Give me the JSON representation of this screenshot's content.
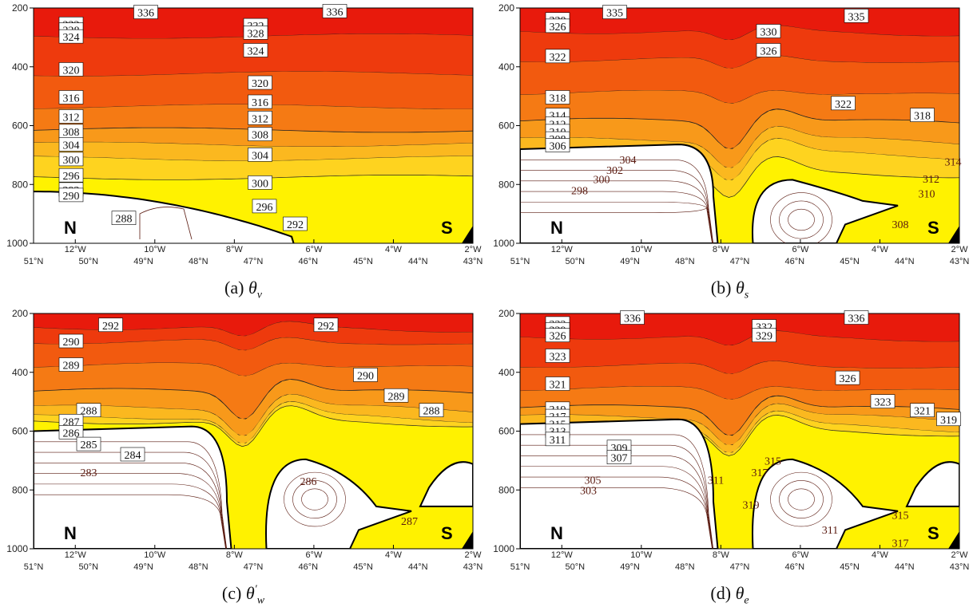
{
  "chart_data": [
    {
      "id": "a",
      "type": "contour",
      "caption_prefix": "(a)",
      "caption_symbol": "θ",
      "caption_sub": "v",
      "caption_sup": "",
      "y_ticks": [
        200,
        400,
        600,
        800,
        1000
      ],
      "ylim": [
        200,
        1000
      ],
      "lon_ticks": [
        "12°W",
        "10°W",
        "8°W",
        "6°W",
        "4°W",
        "2°W"
      ],
      "lat_ticks": [
        "51°N",
        "50°N",
        "49°N",
        "48°N",
        "47°N",
        "46°N",
        "45°N",
        "44°N",
        "43°N"
      ],
      "left_label": "N",
      "right_label": "S",
      "contour_labels": [
        {
          "text": "336",
          "p": 215,
          "pos": 0.23
        },
        {
          "text": "336",
          "p": 212,
          "pos": 0.66
        },
        {
          "text": "332",
          "p": 255,
          "pos": 0.06
        },
        {
          "text": "328",
          "p": 275,
          "pos": 0.06
        },
        {
          "text": "324",
          "p": 298,
          "pos": 0.06
        },
        {
          "text": "332",
          "p": 260,
          "pos": 0.48
        },
        {
          "text": "328",
          "p": 285,
          "pos": 0.48
        },
        {
          "text": "324",
          "p": 345,
          "pos": 0.48
        },
        {
          "text": "320",
          "p": 410,
          "pos": 0.06
        },
        {
          "text": "320",
          "p": 455,
          "pos": 0.49
        },
        {
          "text": "316",
          "p": 505,
          "pos": 0.06
        },
        {
          "text": "316",
          "p": 520,
          "pos": 0.49
        },
        {
          "text": "312",
          "p": 570,
          "pos": 0.06
        },
        {
          "text": "312",
          "p": 575,
          "pos": 0.49
        },
        {
          "text": "308",
          "p": 620,
          "pos": 0.06
        },
        {
          "text": "308",
          "p": 630,
          "pos": 0.49
        },
        {
          "text": "304",
          "p": 665,
          "pos": 0.06
        },
        {
          "text": "304",
          "p": 700,
          "pos": 0.49
        },
        {
          "text": "300",
          "p": 715,
          "pos": 0.06
        },
        {
          "text": "300",
          "p": 795,
          "pos": 0.49
        },
        {
          "text": "296",
          "p": 770,
          "pos": 0.06
        },
        {
          "text": "296",
          "p": 875,
          "pos": 0.5
        },
        {
          "text": "292",
          "p": 818,
          "pos": 0.06
        },
        {
          "text": "290",
          "p": 837,
          "pos": 0.06
        },
        {
          "text": "292",
          "p": 935,
          "pos": 0.57
        },
        {
          "text": "288",
          "p": 915,
          "pos": 0.18
        }
      ]
    },
    {
      "id": "b",
      "type": "contour",
      "caption_prefix": "(b)",
      "caption_symbol": "θ",
      "caption_sub": "s",
      "caption_sup": "",
      "y_ticks": [
        200,
        400,
        600,
        800,
        1000
      ],
      "ylim": [
        200,
        1000
      ],
      "lon_ticks": [
        "12°W",
        "10°W",
        "8°W",
        "6°W",
        "4°W",
        "2°W"
      ],
      "lat_ticks": [
        "51°N",
        "50°N",
        "49°N",
        "48°N",
        "47°N",
        "46°N",
        "45°N",
        "44°N",
        "43°N"
      ],
      "left_label": "N",
      "right_label": "S",
      "contour_labels": [
        {
          "text": "335",
          "p": 215,
          "pos": 0.19
        },
        {
          "text": "335",
          "p": 228,
          "pos": 0.74
        },
        {
          "text": "330",
          "p": 240,
          "pos": 0.06
        },
        {
          "text": "326",
          "p": 262,
          "pos": 0.06
        },
        {
          "text": "330",
          "p": 280,
          "pos": 0.54
        },
        {
          "text": "326",
          "p": 345,
          "pos": 0.54
        },
        {
          "text": "322",
          "p": 365,
          "pos": 0.06
        },
        {
          "text": "322",
          "p": 525,
          "pos": 0.71
        },
        {
          "text": "318",
          "p": 505,
          "pos": 0.06
        },
        {
          "text": "318",
          "p": 565,
          "pos": 0.89
        },
        {
          "text": "314",
          "p": 565,
          "pos": 0.06
        },
        {
          "text": "312",
          "p": 595,
          "pos": 0.06
        },
        {
          "text": "310",
          "p": 620,
          "pos": 0.06
        },
        {
          "text": "308",
          "p": 645,
          "pos": 0.06
        },
        {
          "text": "306",
          "p": 668,
          "pos": 0.06
        },
        {
          "text": "304",
          "p": 715,
          "pos": 0.22
        },
        {
          "text": "302",
          "p": 750,
          "pos": 0.19
        },
        {
          "text": "300",
          "p": 782,
          "pos": 0.16
        },
        {
          "text": "298",
          "p": 820,
          "pos": 0.11
        },
        {
          "text": "314",
          "p": 722,
          "pos": 0.96
        },
        {
          "text": "312",
          "p": 780,
          "pos": 0.91
        },
        {
          "text": "310",
          "p": 830,
          "pos": 0.9
        },
        {
          "text": "308",
          "p": 935,
          "pos": 0.84
        }
      ]
    },
    {
      "id": "c",
      "type": "contour",
      "caption_prefix": "(c)",
      "caption_symbol": "θ",
      "caption_sub": "w",
      "caption_sup": "′",
      "y_ticks": [
        200,
        400,
        600,
        800,
        1000
      ],
      "ylim": [
        200,
        1000
      ],
      "lon_ticks": [
        "12°W",
        "10°W",
        "8°W",
        "6°W",
        "4°W",
        "2°W"
      ],
      "lat_ticks": [
        "51°N",
        "50°N",
        "49°N",
        "48°N",
        "47°N",
        "46°N",
        "45°N",
        "44°N",
        "43°N"
      ],
      "left_label": "N",
      "right_label": "S",
      "contour_labels": [
        {
          "text": "292",
          "p": 240,
          "pos": 0.15
        },
        {
          "text": "292",
          "p": 240,
          "pos": 0.64
        },
        {
          "text": "290",
          "p": 295,
          "pos": 0.06
        },
        {
          "text": "289",
          "p": 375,
          "pos": 0.06
        },
        {
          "text": "290",
          "p": 410,
          "pos": 0.73
        },
        {
          "text": "289",
          "p": 480,
          "pos": 0.8
        },
        {
          "text": "288",
          "p": 530,
          "pos": 0.1
        },
        {
          "text": "288",
          "p": 530,
          "pos": 0.88
        },
        {
          "text": "287",
          "p": 567,
          "pos": 0.06
        },
        {
          "text": "286",
          "p": 605,
          "pos": 0.06
        },
        {
          "text": "285",
          "p": 645,
          "pos": 0.1
        },
        {
          "text": "284",
          "p": 680,
          "pos": 0.2
        },
        {
          "text": "283",
          "p": 740,
          "pos": 0.1
        },
        {
          "text": "286",
          "p": 770,
          "pos": 0.6
        },
        {
          "text": "287",
          "p": 905,
          "pos": 0.83
        }
      ]
    },
    {
      "id": "d",
      "type": "contour",
      "caption_prefix": "(d)",
      "caption_symbol": "θ",
      "caption_sub": "e",
      "caption_sup": "",
      "y_ticks": [
        200,
        400,
        600,
        800,
        1000
      ],
      "ylim": [
        200,
        1000
      ],
      "lon_ticks": [
        "12°W",
        "10°W",
        "8°W",
        "6°W",
        "4°W",
        "2°W"
      ],
      "lat_ticks": [
        "51°N",
        "50°N",
        "49°N",
        "48°N",
        "47°N",
        "46°N",
        "45°N",
        "44°N",
        "43°N"
      ],
      "left_label": "N",
      "right_label": "S",
      "contour_labels": [
        {
          "text": "336",
          "p": 215,
          "pos": 0.23
        },
        {
          "text": "336",
          "p": 215,
          "pos": 0.74
        },
        {
          "text": "332",
          "p": 235,
          "pos": 0.06
        },
        {
          "text": "329",
          "p": 255,
          "pos": 0.06
        },
        {
          "text": "326",
          "p": 275,
          "pos": 0.06
        },
        {
          "text": "332",
          "p": 245,
          "pos": 0.53
        },
        {
          "text": "329",
          "p": 275,
          "pos": 0.53
        },
        {
          "text": "323",
          "p": 345,
          "pos": 0.06
        },
        {
          "text": "326",
          "p": 420,
          "pos": 0.72
        },
        {
          "text": "321",
          "p": 440,
          "pos": 0.06
        },
        {
          "text": "323",
          "p": 500,
          "pos": 0.8
        },
        {
          "text": "321",
          "p": 530,
          "pos": 0.89
        },
        {
          "text": "319",
          "p": 560,
          "pos": 0.95
        },
        {
          "text": "319",
          "p": 525,
          "pos": 0.06
        },
        {
          "text": "317",
          "p": 550,
          "pos": 0.06
        },
        {
          "text": "315",
          "p": 575,
          "pos": 0.06
        },
        {
          "text": "313",
          "p": 600,
          "pos": 0.06
        },
        {
          "text": "311",
          "p": 628,
          "pos": 0.06
        },
        {
          "text": "309",
          "p": 655,
          "pos": 0.2
        },
        {
          "text": "307",
          "p": 690,
          "pos": 0.2
        },
        {
          "text": "305",
          "p": 765,
          "pos": 0.14
        },
        {
          "text": "303",
          "p": 800,
          "pos": 0.13
        },
        {
          "text": "311",
          "p": 765,
          "pos": 0.42
        },
        {
          "text": "317",
          "p": 740,
          "pos": 0.52
        },
        {
          "text": "315",
          "p": 700,
          "pos": 0.55
        },
        {
          "text": "319",
          "p": 850,
          "pos": 0.5
        },
        {
          "text": "311",
          "p": 935,
          "pos": 0.68
        },
        {
          "text": "315",
          "p": 885,
          "pos": 0.84
        },
        {
          "text": "317",
          "p": 980,
          "pos": 0.84
        }
      ]
    }
  ]
}
